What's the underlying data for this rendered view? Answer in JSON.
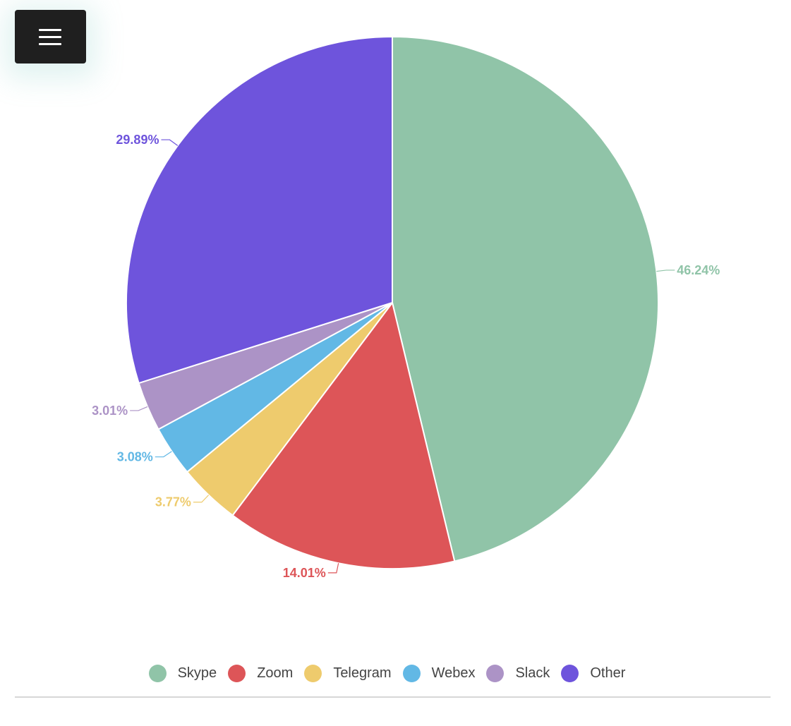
{
  "menu": {
    "icon": "hamburger-menu-icon"
  },
  "chart_data": {
    "type": "pie",
    "categories": [
      "Skype",
      "Zoom",
      "Telegram",
      "Webex",
      "Slack",
      "Other"
    ],
    "values": [
      46.24,
      14.01,
      3.77,
      3.08,
      3.01,
      29.89
    ],
    "data_labels": [
      "46.24%",
      "14.01%",
      "3.77%",
      "3.08%",
      "3.01%",
      "29.89%"
    ],
    "colors": [
      "#90c4a8",
      "#dd5558",
      "#eecb6d",
      "#62b8e5",
      "#ac93c6",
      "#6e54dc"
    ],
    "legend": "bottom-center",
    "start_angle": "top, clockwise"
  },
  "legend_items": [
    {
      "label": "Skype",
      "color": "#90c4a8"
    },
    {
      "label": "Zoom",
      "color": "#dd5558"
    },
    {
      "label": "Telegram",
      "color": "#eecb6d"
    },
    {
      "label": "Webex",
      "color": "#62b8e5"
    },
    {
      "label": "Slack",
      "color": "#ac93c6"
    },
    {
      "label": "Other",
      "color": "#6e54dc"
    }
  ]
}
